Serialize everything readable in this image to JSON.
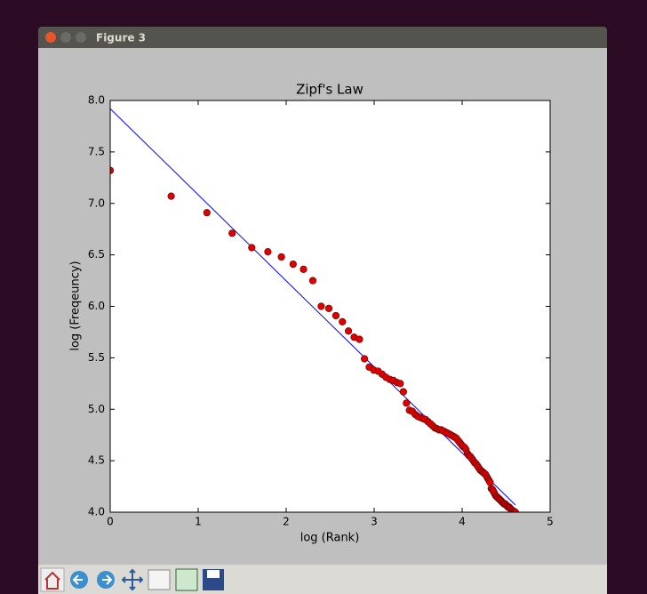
{
  "window": {
    "title": "Figure 3"
  },
  "chart_data": {
    "type": "scatter",
    "title": "Zipf's Law",
    "x_label": "log (Rank)",
    "y_label": "log (Freqeuncy)",
    "xlim": [
      0,
      5
    ],
    "ylim": [
      4,
      8
    ],
    "xticks": [
      0,
      1,
      2,
      3,
      4,
      5
    ],
    "yticks": [
      {
        "value": 4,
        "label": "4.0"
      },
      4.5,
      {
        "value": 5,
        "label": "5.0"
      },
      5.5,
      {
        "value": 6,
        "label": "6.0"
      },
      6.5,
      {
        "value": 7,
        "label": "7.0"
      },
      7.5,
      {
        "value": 8,
        "label": "8.0"
      }
    ],
    "series": [
      {
        "type": "scatter",
        "color": "#e00000",
        "x": [
          0,
          0.693,
          1.099,
          1.386,
          1.609,
          1.792,
          1.946,
          2.079,
          2.197,
          2.303,
          2.398,
          2.485,
          2.565,
          2.639,
          2.708,
          2.773,
          2.833,
          2.89,
          2.944,
          2.996,
          3.045,
          3.091,
          3.135,
          3.178,
          3.219,
          3.258,
          3.296,
          3.332,
          3.367,
          3.401,
          3.434,
          3.466,
          3.497,
          3.526,
          3.555,
          3.584,
          3.611,
          3.638,
          3.664,
          3.689,
          3.714,
          3.738,
          3.761,
          3.784,
          3.807,
          3.829,
          3.85,
          3.871,
          3.892,
          3.912,
          3.932,
          3.951,
          3.97,
          3.989,
          4.007,
          4.025,
          4.043,
          4.06,
          4.078,
          4.094,
          4.111,
          4.127,
          4.143,
          4.159,
          4.174,
          4.19,
          4.205,
          4.22,
          4.234,
          4.248,
          4.263,
          4.277,
          4.29,
          4.304,
          4.317,
          4.331,
          4.344,
          4.357,
          4.369,
          4.382,
          4.394,
          4.407,
          4.419,
          4.431,
          4.443,
          4.454,
          4.466,
          4.477,
          4.489,
          4.5,
          4.511,
          4.522,
          4.533,
          4.543,
          4.554,
          4.564,
          4.575,
          4.585,
          4.595,
          4.605
        ],
        "values": [
          7.32,
          7.07,
          6.91,
          6.71,
          6.57,
          6.53,
          6.48,
          6.41,
          6.36,
          6.25,
          6.0,
          5.98,
          5.91,
          5.85,
          5.76,
          5.7,
          5.68,
          5.49,
          5.41,
          5.38,
          5.37,
          5.34,
          5.31,
          5.29,
          5.28,
          5.26,
          5.25,
          5.17,
          5.06,
          4.99,
          4.98,
          4.95,
          4.93,
          4.92,
          4.91,
          4.9,
          4.88,
          4.86,
          4.84,
          4.82,
          4.81,
          4.8,
          4.8,
          4.79,
          4.78,
          4.77,
          4.76,
          4.75,
          4.74,
          4.73,
          4.72,
          4.7,
          4.68,
          4.66,
          4.64,
          4.63,
          4.61,
          4.57,
          4.55,
          4.54,
          4.52,
          4.5,
          4.48,
          4.47,
          4.45,
          4.43,
          4.41,
          4.4,
          4.39,
          4.38,
          4.37,
          4.35,
          4.33,
          4.31,
          4.29,
          4.23,
          4.22,
          4.2,
          4.18,
          4.16,
          4.15,
          4.14,
          4.13,
          4.12,
          4.11,
          4.1,
          4.09,
          4.08,
          4.08,
          4.07,
          4.06,
          4.05,
          4.05,
          4.04,
          4.03,
          4.02,
          4.01,
          4.01,
          4.0,
          4.0
        ]
      },
      {
        "type": "line",
        "color": "#0000ff",
        "x": [
          0,
          4.605
        ],
        "values": [
          7.92,
          4.07
        ]
      }
    ]
  }
}
